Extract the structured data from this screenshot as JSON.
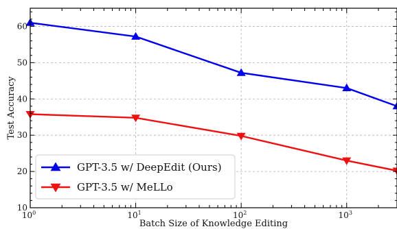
{
  "chart_data": {
    "type": "line",
    "xlabel": "Batch Size of Knowledge Editing",
    "ylabel": "Test Accuracy",
    "x_scale": "log10",
    "xlim": [
      1,
      3000
    ],
    "ylim": [
      10,
      65
    ],
    "x_ticks": [
      {
        "value": 1,
        "base": "10",
        "exp": "0"
      },
      {
        "value": 10,
        "base": "10",
        "exp": "1"
      },
      {
        "value": 100,
        "base": "10",
        "exp": "2"
      },
      {
        "value": 1000,
        "base": "10",
        "exp": "3"
      }
    ],
    "y_ticks": [
      {
        "value": 10,
        "label": "10"
      },
      {
        "value": 20,
        "label": "20"
      },
      {
        "value": 30,
        "label": "30"
      },
      {
        "value": 40,
        "label": "40"
      },
      {
        "value": 50,
        "label": "50"
      },
      {
        "value": 60,
        "label": "60"
      }
    ],
    "grid": true,
    "legend_position": "bottom-left",
    "series": [
      {
        "name": "GPT-3.5 w/ DeepEdit (Ours)",
        "color": "#0000ee",
        "marker": "triangle-up",
        "x": [
          1,
          10,
          100,
          1000,
          3000
        ],
        "y": [
          61,
          57.2,
          47.2,
          43,
          38
        ]
      },
      {
        "name": "GPT-3.5 w/ MeLLo",
        "color": "#ee1111",
        "marker": "triangle-down",
        "x": [
          1,
          10,
          100,
          1000,
          3000
        ],
        "y": [
          35.8,
          34.8,
          29.8,
          23,
          20.2
        ]
      }
    ]
  }
}
